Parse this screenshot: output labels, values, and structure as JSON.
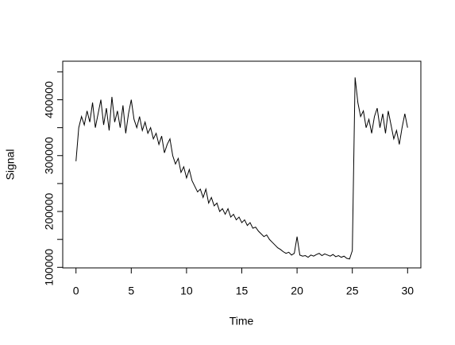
{
  "chart_data": {
    "type": "line",
    "xlabel": "Time",
    "ylabel": "Signal",
    "x": [
      0,
      0.25,
      0.5,
      0.75,
      1,
      1.25,
      1.5,
      1.75,
      2,
      2.25,
      2.5,
      2.75,
      3,
      3.25,
      3.5,
      3.75,
      4,
      4.25,
      4.5,
      4.75,
      5,
      5.25,
      5.5,
      5.75,
      6,
      6.25,
      6.5,
      6.75,
      7,
      7.25,
      7.5,
      7.75,
      8,
      8.25,
      8.5,
      8.75,
      9,
      9.25,
      9.5,
      9.75,
      10,
      10.25,
      10.5,
      10.75,
      11,
      11.25,
      11.5,
      11.75,
      12,
      12.25,
      12.5,
      12.75,
      13,
      13.25,
      13.5,
      13.75,
      14,
      14.25,
      14.5,
      14.75,
      15,
      15.25,
      15.5,
      15.75,
      16,
      16.25,
      16.5,
      16.75,
      17,
      17.25,
      17.5,
      17.75,
      18,
      18.25,
      18.5,
      18.75,
      19,
      19.25,
      19.5,
      19.75,
      20,
      20.25,
      20.5,
      20.75,
      21,
      21.25,
      21.5,
      21.75,
      22,
      22.25,
      22.5,
      22.75,
      23,
      23.25,
      23.5,
      23.75,
      24,
      24.25,
      24.5,
      24.75,
      25,
      25.25,
      25.5,
      25.75,
      26,
      26.25,
      26.5,
      26.75,
      27,
      27.25,
      27.5,
      27.75,
      28,
      28.25,
      28.5,
      28.75,
      29,
      29.25,
      29.5,
      29.75,
      30
    ],
    "series": [
      {
        "color": "#000000",
        "values": [
          290000,
          350000,
          370000,
          355000,
          380000,
          360000,
          395000,
          350000,
          375000,
          400000,
          355000,
          385000,
          345000,
          405000,
          360000,
          380000,
          350000,
          390000,
          340000,
          375000,
          400000,
          365000,
          350000,
          370000,
          345000,
          360000,
          340000,
          350000,
          330000,
          340000,
          320000,
          335000,
          305000,
          320000,
          330000,
          300000,
          285000,
          295000,
          270000,
          280000,
          260000,
          275000,
          255000,
          245000,
          235000,
          240000,
          225000,
          240000,
          215000,
          225000,
          210000,
          215000,
          200000,
          205000,
          195000,
          205000,
          190000,
          195000,
          185000,
          190000,
          180000,
          185000,
          175000,
          180000,
          170000,
          172000,
          165000,
          160000,
          155000,
          158000,
          150000,
          145000,
          140000,
          135000,
          132000,
          128000,
          125000,
          127000,
          122000,
          125000,
          155000,
          122000,
          120000,
          121000,
          118000,
          122000,
          120000,
          123000,
          125000,
          121000,
          124000,
          122000,
          120000,
          123000,
          119000,
          121000,
          118000,
          120000,
          116000,
          115000,
          130000,
          440000,
          395000,
          370000,
          380000,
          350000,
          365000,
          340000,
          370000,
          385000,
          350000,
          375000,
          340000,
          380000,
          355000,
          330000,
          345000,
          320000,
          350000,
          375000,
          350000
        ]
      }
    ],
    "xlim": [
      -1.2,
      31.2
    ],
    "ylim": [
      99000,
      469000
    ],
    "xticks": [
      0,
      5,
      10,
      15,
      20,
      25,
      30
    ],
    "yticks": [
      100000,
      200000,
      300000,
      400000
    ],
    "yminorticks": [
      150000,
      250000,
      350000,
      450000
    ]
  }
}
